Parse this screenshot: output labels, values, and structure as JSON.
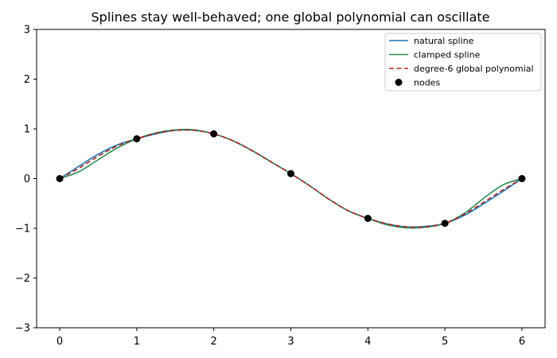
{
  "chart_data": {
    "type": "line",
    "title": "Splines stay well-behaved; one global polynomial can oscillate",
    "xlabel": "",
    "ylabel": "",
    "xlim": [
      -0.3,
      6.3
    ],
    "ylim": [
      -3,
      3
    ],
    "x_ticks": [
      0,
      1,
      2,
      3,
      4,
      5,
      6
    ],
    "y_ticks": [
      -3,
      -2,
      -1,
      0,
      1,
      2,
      3
    ],
    "grid": false,
    "legend_position": "top-right",
    "nodes": {
      "name": "nodes",
      "color": "#000000",
      "x": [
        0,
        1,
        2,
        3,
        4,
        5,
        6
      ],
      "y": [
        0.0,
        0.8,
        0.9,
        0.1,
        -0.8,
        -0.9,
        0.0
      ]
    },
    "series": [
      {
        "name": "natural spline",
        "color": "#1f77b4",
        "style": "solid",
        "x": [
          0,
          0.25,
          0.5,
          0.75,
          1.0,
          1.25,
          1.5,
          1.75,
          2.0,
          2.25,
          2.5,
          2.75,
          3.0,
          3.25,
          3.5,
          3.75,
          4.0,
          4.25,
          4.5,
          4.75,
          5.0,
          5.25,
          5.5,
          5.75,
          6.0
        ],
        "y": [
          0.0,
          0.25,
          0.49,
          0.68,
          0.8,
          0.9,
          0.97,
          0.97,
          0.9,
          0.76,
          0.56,
          0.33,
          0.1,
          -0.15,
          -0.42,
          -0.65,
          -0.8,
          -0.91,
          -0.97,
          -0.96,
          -0.9,
          -0.74,
          -0.51,
          -0.26,
          0.0
        ]
      },
      {
        "name": "clamped spline",
        "color": "#2e8b57",
        "style": "solid",
        "x": [
          0,
          0.25,
          0.5,
          0.75,
          1.0,
          1.25,
          1.5,
          1.75,
          2.0,
          2.25,
          2.5,
          2.75,
          3.0,
          3.25,
          3.5,
          3.75,
          4.0,
          4.25,
          4.5,
          4.75,
          5.0,
          5.25,
          5.5,
          5.75,
          6.0
        ],
        "y": [
          0.0,
          0.14,
          0.38,
          0.62,
          0.8,
          0.92,
          0.98,
          0.98,
          0.9,
          0.76,
          0.56,
          0.33,
          0.1,
          -0.15,
          -0.42,
          -0.65,
          -0.8,
          -0.93,
          -0.99,
          -0.98,
          -0.9,
          -0.7,
          -0.4,
          -0.13,
          0.0
        ]
      },
      {
        "name": "degree-6 global polynomial",
        "color": "#b22222",
        "style": "dashed",
        "x": [
          0,
          0.25,
          0.5,
          0.75,
          1.0,
          1.25,
          1.5,
          1.75,
          2.0,
          2.25,
          2.5,
          2.75,
          3.0,
          3.25,
          3.5,
          3.75,
          4.0,
          4.25,
          4.5,
          4.75,
          5.0,
          5.25,
          5.5,
          5.75,
          6.0
        ],
        "y": [
          0.0,
          0.21,
          0.45,
          0.66,
          0.8,
          0.91,
          0.97,
          0.97,
          0.9,
          0.76,
          0.56,
          0.33,
          0.1,
          -0.15,
          -0.42,
          -0.65,
          -0.8,
          -0.91,
          -0.97,
          -0.97,
          -0.9,
          -0.72,
          -0.48,
          -0.23,
          0.0
        ]
      }
    ]
  }
}
